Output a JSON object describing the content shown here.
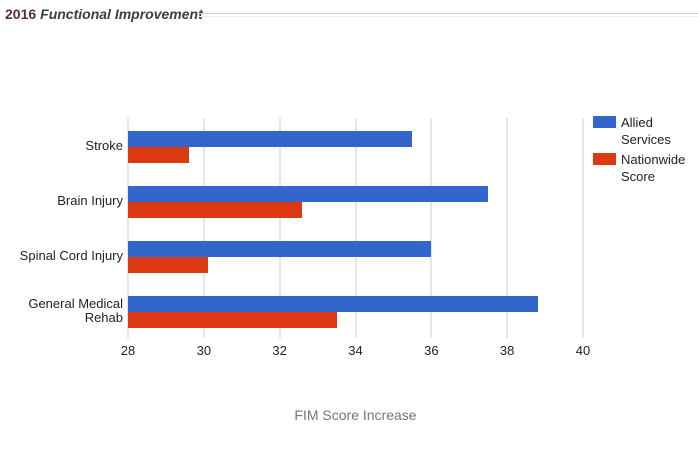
{
  "header": {
    "title_prefix": "2016",
    "title_main": "Functional Improvement",
    "title_prefix_color": "#54303e",
    "title_main_color": "#3b3e45"
  },
  "chart_data": {
    "type": "bar",
    "orientation": "horizontal",
    "title": "2016 Functional Improvement",
    "xlabel": "FIM Score Increase",
    "xlim": [
      28,
      40
    ],
    "xticks": [
      28,
      30,
      32,
      34,
      36,
      38,
      40
    ],
    "grid": true,
    "legend_position": "right",
    "categories": [
      "Stroke",
      "Brain Injury",
      "Spinal Cord Injury",
      "General Medical Rehab"
    ],
    "series": [
      {
        "name": "Allied Services",
        "color": "#3366CC",
        "values": [
          35.5,
          37.5,
          36.0,
          38.8
        ]
      },
      {
        "name": "Nationwide Score",
        "color": "#DC3912",
        "values": [
          29.6,
          32.6,
          30.1,
          33.5
        ]
      }
    ]
  },
  "colors": {
    "background": "#ffffff",
    "gridline": "#cccccc",
    "axis_text": "#222222",
    "axis_title_text": "#757575",
    "divider_dark": "#cfcfcf",
    "divider_light": "#ededed"
  }
}
